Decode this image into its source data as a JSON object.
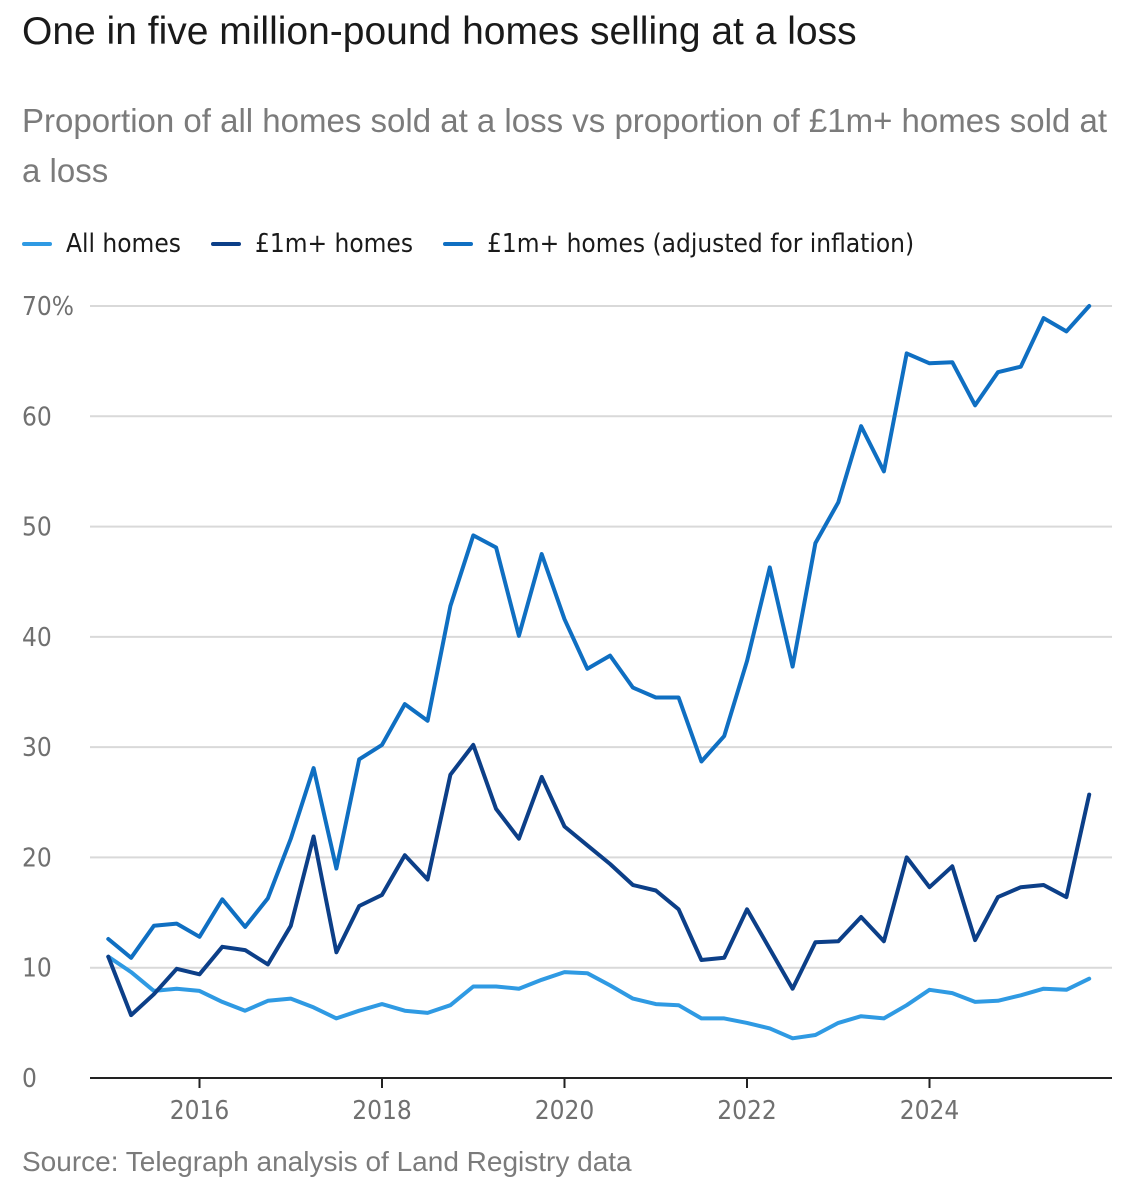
{
  "title": "One in five million-pound homes selling at a loss",
  "subtitle": "Proportion of all homes sold at a loss vs proportion of £1m+ homes sold at a loss",
  "source": "Source: Telegraph analysis of Land Registry data",
  "colors": {
    "all_homes": "#2f9ae3",
    "m1_homes": "#0c3f88",
    "m1_homes_adjusted": "#0f6fc2",
    "grid": "#d9d9d9",
    "axis": "#222222"
  },
  "chart_data": {
    "type": "line",
    "title": "One in five million-pound homes selling at a loss",
    "subtitle": "Proportion of all homes sold at a loss vs proportion of £1m+ homes sold at a loss",
    "x_tick_labels": [
      "2016",
      "2018",
      "2020",
      "2022",
      "2024"
    ],
    "x_tick_values": [
      2016,
      2018,
      2020,
      2022,
      2024
    ],
    "xlim": [
      2014.8,
      2026.0
    ],
    "y_tick_labels": [
      "0",
      "10",
      "20",
      "30",
      "40",
      "50",
      "60",
      "70%"
    ],
    "y_tick_values": [
      0,
      10,
      20,
      30,
      40,
      50,
      60,
      70
    ],
    "ylim": [
      0,
      70
    ],
    "grid": true,
    "legend_position": "top-left",
    "x": [
      2015.0,
      2015.25,
      2015.5,
      2015.75,
      2016.0,
      2016.25,
      2016.5,
      2016.75,
      2017.0,
      2017.25,
      2017.5,
      2017.75,
      2018.0,
      2018.25,
      2018.5,
      2018.75,
      2019.0,
      2019.25,
      2019.5,
      2019.75,
      2020.0,
      2020.25,
      2020.5,
      2020.75,
      2021.0,
      2021.25,
      2021.5,
      2021.75,
      2022.0,
      2022.25,
      2022.5,
      2022.75,
      2023.0,
      2023.25,
      2023.5,
      2023.75,
      2024.0,
      2024.25,
      2024.5,
      2024.75,
      2025.0,
      2025.25,
      2025.5,
      2025.75
    ],
    "series": [
      {
        "name": "All homes",
        "color": "#2f9ae3",
        "values": [
          11.0,
          9.6,
          7.9,
          8.1,
          7.9,
          6.9,
          6.1,
          7.0,
          7.2,
          6.4,
          5.4,
          6.1,
          6.7,
          6.1,
          5.9,
          6.6,
          8.3,
          8.3,
          8.1,
          8.9,
          9.6,
          9.5,
          8.4,
          7.2,
          6.7,
          6.6,
          5.4,
          5.4,
          5.0,
          4.5,
          3.6,
          3.9,
          5.0,
          5.6,
          5.4,
          6.6,
          8.0,
          7.7,
          6.9,
          7.0,
          7.5,
          8.1,
          8.0,
          9.0
        ]
      },
      {
        "name": "£1m+ homes",
        "color": "#0c3f88",
        "values": [
          11.0,
          5.7,
          7.6,
          9.9,
          9.4,
          11.9,
          11.6,
          10.3,
          13.8,
          21.9,
          11.4,
          15.6,
          16.6,
          20.2,
          18.0,
          27.5,
          30.2,
          24.4,
          21.7,
          27.3,
          22.8,
          21.1,
          19.4,
          17.5,
          17.0,
          15.3,
          10.7,
          10.9,
          15.3,
          11.7,
          8.1,
          12.3,
          12.4,
          14.6,
          12.4,
          20.0,
          17.3,
          19.2,
          12.5,
          16.4,
          17.3,
          17.5,
          16.4,
          25.7
        ]
      },
      {
        "name": "£1m+ homes (adjusted for inflation)",
        "color": "#0f6fc2",
        "values": [
          12.6,
          10.9,
          13.8,
          14.0,
          12.8,
          16.2,
          13.7,
          16.3,
          21.7,
          28.1,
          19.0,
          28.9,
          30.2,
          33.9,
          32.4,
          42.8,
          49.2,
          48.1,
          40.1,
          47.5,
          41.6,
          37.1,
          38.3,
          35.4,
          34.5,
          34.5,
          28.7,
          31.0,
          37.8,
          46.3,
          37.3,
          48.5,
          52.2,
          59.1,
          55.0,
          65.7,
          64.8,
          64.9,
          61.0,
          64.0,
          64.5,
          68.9,
          67.7,
          70.0
        ]
      }
    ]
  }
}
